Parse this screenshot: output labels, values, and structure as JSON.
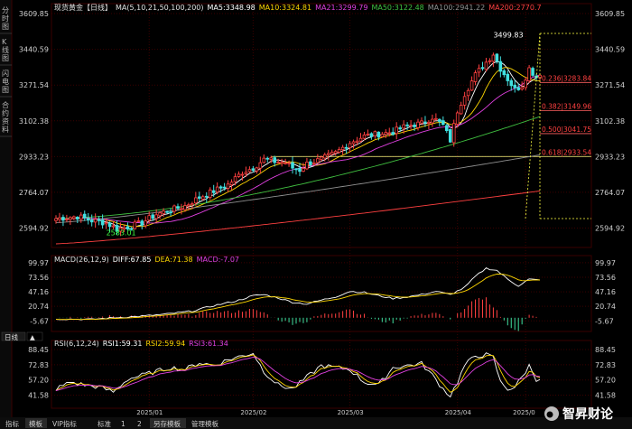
{
  "side_tabs": [
    "分时图",
    "K线图",
    "闪电图",
    "合约资料"
  ],
  "main": {
    "legend": [
      {
        "text": "现货黄金【日线】",
        "color": "#e0e0e0"
      },
      {
        "text": "MA(5,10,21,50,100,200)",
        "color": "#e0e0e0"
      },
      {
        "text": "MA5:3348.98",
        "color": "#ffffff"
      },
      {
        "text": "MA10:3324.81",
        "color": "#ffd700"
      },
      {
        "text": "MA21:3299.79",
        "color": "#e040e0"
      },
      {
        "text": "MA50:3122.48",
        "color": "#40c040"
      },
      {
        "text": "MA100:2941.22",
        "color": "#909090"
      },
      {
        "text": "MA200:2770.7",
        "color": "#ff4040"
      }
    ],
    "y_ticks": [
      "3609.85",
      "3440.59",
      "3271.54",
      "3102.38",
      "2933.23",
      "2764.07",
      "2594.92"
    ],
    "y_tick_values": [
      3609.85,
      3440.59,
      3271.54,
      3102.38,
      2933.23,
      2764.07,
      2594.92
    ],
    "ylim": [
      2520,
      3640
    ],
    "high_label": "3499.83",
    "low_label": "2583.01",
    "high_value": 3499.83,
    "low_value": 2583.01
  },
  "fib": [
    {
      "text": "0.236|3283.84",
      "value": 3283.84
    },
    {
      "text": "0.382|3149.96",
      "value": 3149.96
    },
    {
      "text": "0.500|3041.75",
      "value": 3041.75
    },
    {
      "text": "0.618|2933.54",
      "value": 2933.54
    }
  ],
  "macd": {
    "legend": [
      {
        "text": "MACD(26,12,9)",
        "color": "#e0e0e0"
      },
      {
        "text": "DIFF:67.85",
        "color": "#ffffff"
      },
      {
        "text": "DEA:71.38",
        "color": "#ffd700"
      },
      {
        "text": "MACD:-7.07",
        "color": "#e040e0"
      }
    ],
    "y_ticks": [
      "99.97",
      "73.56",
      "47.16",
      "20.74",
      "-5.67"
    ],
    "y_tick_values": [
      99.97,
      73.56,
      47.16,
      20.74,
      -5.67
    ],
    "ylim": [
      -20,
      108
    ]
  },
  "tabs": [
    {
      "text": "日线",
      "active": true
    },
    {
      "text": "▲",
      "active": false
    }
  ],
  "rsi": {
    "legend": [
      {
        "text": "RSI(6,12,24)",
        "color": "#e0e0e0"
      },
      {
        "text": "RSI1:59.31",
        "color": "#ffffff"
      },
      {
        "text": "RSI2:59.94",
        "color": "#ffd700"
      },
      {
        "text": "RSI3:61.34",
        "color": "#e040e0"
      }
    ],
    "y_ticks": [
      "88.45",
      "72.83",
      "57.20",
      "41.58"
    ],
    "y_tick_values": [
      88.45,
      72.83,
      57.2,
      41.58
    ],
    "ylim": [
      30,
      95
    ]
  },
  "toolbar": [
    {
      "text": "指标",
      "active": false
    },
    {
      "text": "模板",
      "active": true
    },
    {
      "text": "VIP指标",
      "active": false
    },
    {
      "text": "标准",
      "active": false
    },
    {
      "text": "1",
      "active": false
    },
    {
      "text": "2",
      "active": false
    },
    {
      "text": "另存模板",
      "active": true
    },
    {
      "text": "管理模板",
      "active": false
    }
  ],
  "x_labels": [
    {
      "text": "2025/01",
      "idx": 26
    },
    {
      "text": "2025/02",
      "idx": 55
    },
    {
      "text": "2025/03",
      "idx": 82
    },
    {
      "text": "2025/04",
      "idx": 112
    },
    {
      "text": "2025/0",
      "idx": 131
    }
  ],
  "watermark": "智昇财论",
  "chart_data": {
    "type": "candlestick",
    "title": "现货黄金【日线】",
    "ma_series": [
      {
        "name": "MA5",
        "last": 3348.98,
        "color": "#ffffff"
      },
      {
        "name": "MA10",
        "last": 3324.81,
        "color": "#ffd700"
      },
      {
        "name": "MA21",
        "last": 3299.79,
        "color": "#e040e0"
      },
      {
        "name": "MA50",
        "last": 3122.48,
        "color": "#40c040"
      },
      {
        "name": "MA100",
        "last": 2941.22,
        "color": "#909090"
      },
      {
        "name": "MA200",
        "last": 2770.7,
        "color": "#ff4040"
      }
    ],
    "anchors": [
      [
        0,
        2640
      ],
      [
        6,
        2650
      ],
      [
        10,
        2630
      ],
      [
        14,
        2620
      ],
      [
        17,
        2590
      ],
      [
        20,
        2600
      ],
      [
        24,
        2620
      ],
      [
        28,
        2660
      ],
      [
        32,
        2680
      ],
      [
        36,
        2700
      ],
      [
        40,
        2740
      ],
      [
        44,
        2770
      ],
      [
        48,
        2800
      ],
      [
        52,
        2860
      ],
      [
        55,
        2880
      ],
      [
        58,
        2920
      ],
      [
        61,
        2910
      ],
      [
        64,
        2905
      ],
      [
        66,
        2880
      ],
      [
        68,
        2870
      ],
      [
        70,
        2900
      ],
      [
        74,
        2920
      ],
      [
        78,
        2950
      ],
      [
        82,
        3000
      ],
      [
        86,
        3030
      ],
      [
        90,
        3040
      ],
      [
        94,
        3050
      ],
      [
        98,
        3080
      ],
      [
        102,
        3090
      ],
      [
        105,
        3120
      ],
      [
        108,
        3080
      ],
      [
        110,
        3010
      ],
      [
        112,
        3150
      ],
      [
        114,
        3230
      ],
      [
        117,
        3320
      ],
      [
        120,
        3380
      ],
      [
        122,
        3420
      ],
      [
        124,
        3350
      ],
      [
        126,
        3300
      ],
      [
        128,
        3250
      ],
      [
        130,
        3270
      ],
      [
        132,
        3350
      ],
      [
        134,
        3310
      ],
      [
        135,
        3330
      ]
    ],
    "macd_diff_anchors": [
      [
        0,
        -2
      ],
      [
        10,
        -3
      ],
      [
        16,
        0
      ],
      [
        22,
        2
      ],
      [
        30,
        6
      ],
      [
        38,
        12
      ],
      [
        44,
        22
      ],
      [
        50,
        30
      ],
      [
        55,
        40
      ],
      [
        58,
        42
      ],
      [
        62,
        36
      ],
      [
        66,
        28
      ],
      [
        70,
        25
      ],
      [
        74,
        32
      ],
      [
        78,
        38
      ],
      [
        82,
        48
      ],
      [
        86,
        46
      ],
      [
        90,
        40
      ],
      [
        94,
        35
      ],
      [
        98,
        38
      ],
      [
        102,
        42
      ],
      [
        106,
        48
      ],
      [
        110,
        42
      ],
      [
        114,
        55
      ],
      [
        117,
        75
      ],
      [
        120,
        90
      ],
      [
        123,
        86
      ],
      [
        126,
        70
      ],
      [
        129,
        58
      ],
      [
        132,
        70
      ],
      [
        135,
        68
      ]
    ],
    "rsi_anchors": [
      [
        0,
        48
      ],
      [
        4,
        55
      ],
      [
        8,
        52
      ],
      [
        12,
        50
      ],
      [
        16,
        45
      ],
      [
        20,
        58
      ],
      [
        24,
        62
      ],
      [
        28,
        66
      ],
      [
        32,
        70
      ],
      [
        36,
        68
      ],
      [
        40,
        75
      ],
      [
        44,
        72
      ],
      [
        48,
        78
      ],
      [
        52,
        82
      ],
      [
        55,
        85
      ],
      [
        58,
        66
      ],
      [
        62,
        52
      ],
      [
        66,
        48
      ],
      [
        70,
        60
      ],
      [
        74,
        72
      ],
      [
        78,
        70
      ],
      [
        82,
        68
      ],
      [
        86,
        55
      ],
      [
        90,
        52
      ],
      [
        94,
        70
      ],
      [
        98,
        72
      ],
      [
        102,
        74
      ],
      [
        105,
        62
      ],
      [
        108,
        48
      ],
      [
        110,
        41
      ],
      [
        112,
        55
      ],
      [
        114,
        72
      ],
      [
        117,
        82
      ],
      [
        120,
        83
      ],
      [
        122,
        80
      ],
      [
        124,
        55
      ],
      [
        126,
        48
      ],
      [
        128,
        50
      ],
      [
        130,
        60
      ],
      [
        132,
        72
      ],
      [
        134,
        58
      ],
      [
        135,
        59
      ]
    ]
  }
}
